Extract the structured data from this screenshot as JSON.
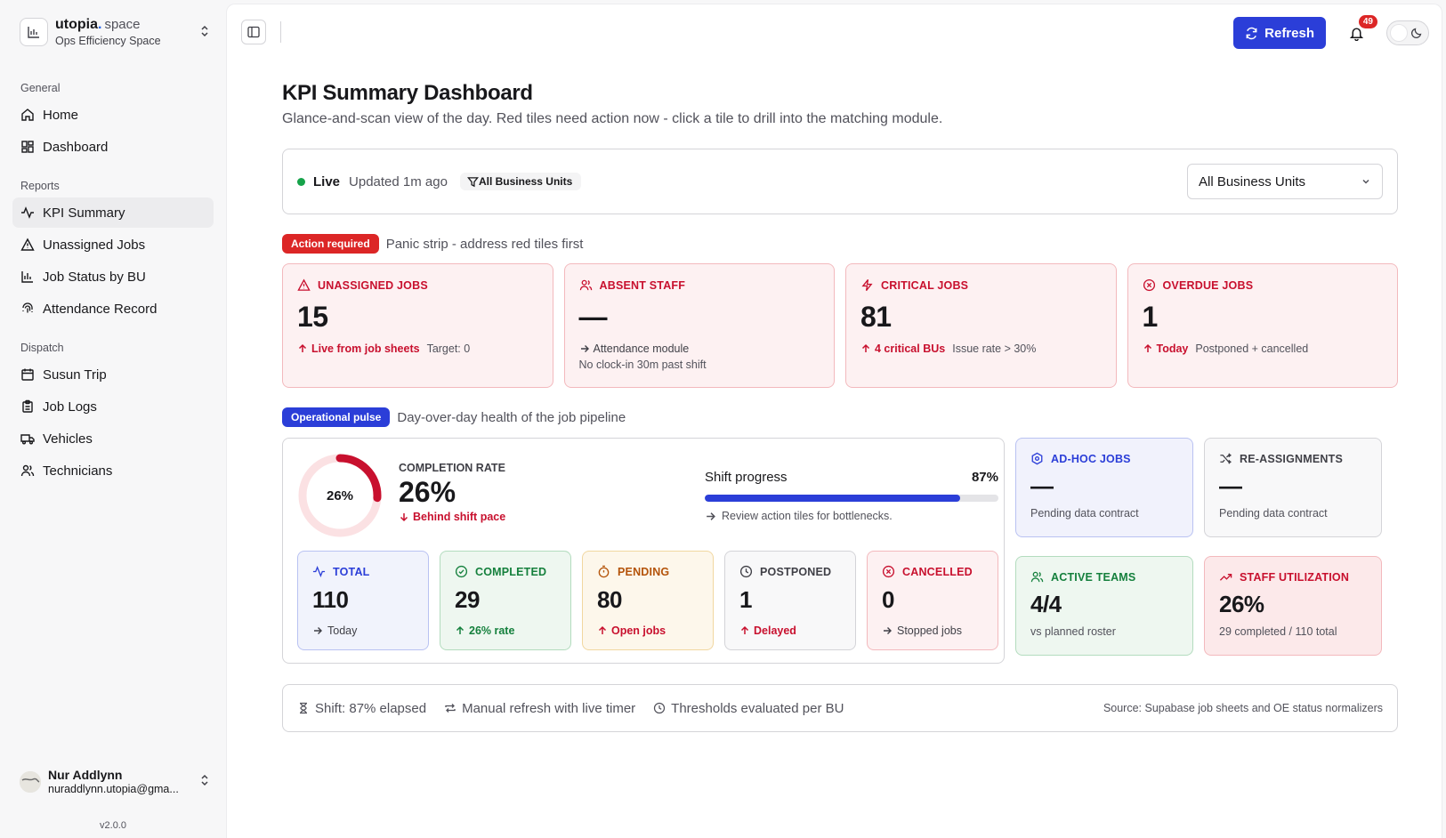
{
  "brand": {
    "name": "utopia",
    "dot": ".",
    "suffix": "space",
    "workspace": "Ops Efficiency Space"
  },
  "nav": {
    "general_title": "General",
    "general": [
      {
        "label": "Home",
        "icon": "home-icon"
      },
      {
        "label": "Dashboard",
        "icon": "dashboard-icon"
      }
    ],
    "reports_title": "Reports",
    "reports": [
      {
        "label": "KPI Summary",
        "icon": "activity-icon",
        "active": true
      },
      {
        "label": "Unassigned Jobs",
        "icon": "alert-triangle-icon"
      },
      {
        "label": "Job Status by BU",
        "icon": "bar-chart-icon"
      },
      {
        "label": "Attendance Record",
        "icon": "fingerprint-icon"
      }
    ],
    "dispatch_title": "Dispatch",
    "dispatch": [
      {
        "label": "Susun Trip",
        "icon": "calendar-icon"
      },
      {
        "label": "Job Logs",
        "icon": "clipboard-icon"
      },
      {
        "label": "Vehicles",
        "icon": "truck-icon"
      },
      {
        "label": "Technicians",
        "icon": "users-icon"
      }
    ]
  },
  "user": {
    "name": "Nur Addlynn",
    "email": "nuraddlynn.utopia@gma..."
  },
  "version": "v2.0.0",
  "topbar": {
    "refresh_label": "Refresh",
    "notification_count": "49"
  },
  "page": {
    "title": "KPI Summary Dashboard",
    "subtitle": "Glance-and-scan view of the day. Red tiles need action now - click a tile to drill into the matching module."
  },
  "live": {
    "label": "Live",
    "updated": "Updated 1m ago",
    "filter_chip": "All Business Units",
    "select_value": "All Business Units"
  },
  "panic": {
    "pill": "Action required",
    "desc": "Panic strip - address red tiles first",
    "tiles": [
      {
        "label": "UNASSIGNED JOBS",
        "value": "15",
        "emph": "Live from job sheets",
        "note": "Target: 0"
      },
      {
        "label": "ABSENT STAFF",
        "value": "—",
        "emph": "Attendance module",
        "note": "No clock-in 30m past shift"
      },
      {
        "label": "CRITICAL JOBS",
        "value": "81",
        "emph": "4 critical BUs",
        "note": "Issue rate > 30%"
      },
      {
        "label": "OVERDUE JOBS",
        "value": "1",
        "emph": "Today",
        "note": "Postponed + cancelled"
      }
    ]
  },
  "ops": {
    "pill": "Operational pulse",
    "desc": "Day-over-day health of the job pipeline",
    "completion": {
      "donut_label": "26%",
      "label": "COMPLETION RATE",
      "value": "26%",
      "fraction": 0.26,
      "foot": "Behind shift pace"
    },
    "shift": {
      "label": "Shift progress",
      "value": "87%",
      "fraction": 0.87,
      "note": "Review action tiles for bottlenecks."
    },
    "stats": [
      {
        "label": "TOTAL",
        "value": "110",
        "foot": "Today"
      },
      {
        "label": "COMPLETED",
        "value": "29",
        "foot": "26% rate"
      },
      {
        "label": "PENDING",
        "value": "80",
        "foot": "Open jobs"
      },
      {
        "label": "POSTPONED",
        "value": "1",
        "foot": "Delayed"
      },
      {
        "label": "CANCELLED",
        "value": "0",
        "foot": "Stopped jobs"
      }
    ],
    "side": [
      {
        "label": "AD-HOC JOBS",
        "value": "—",
        "foot": "Pending data contract"
      },
      {
        "label": "RE-ASSIGNMENTS",
        "value": "—",
        "foot": "Pending data contract"
      },
      {
        "label": "ACTIVE TEAMS",
        "value": "4/4",
        "foot": "vs planned roster"
      },
      {
        "label": "STAFF UTILIZATION",
        "value": "26%",
        "foot": "29 completed / 110 total"
      }
    ]
  },
  "footer": {
    "shift": "Shift: 87% elapsed",
    "refresh": "Manual refresh with live timer",
    "thresholds": "Thresholds evaluated per BU",
    "source": "Source: Supabase job sheets and OE status normalizers"
  }
}
